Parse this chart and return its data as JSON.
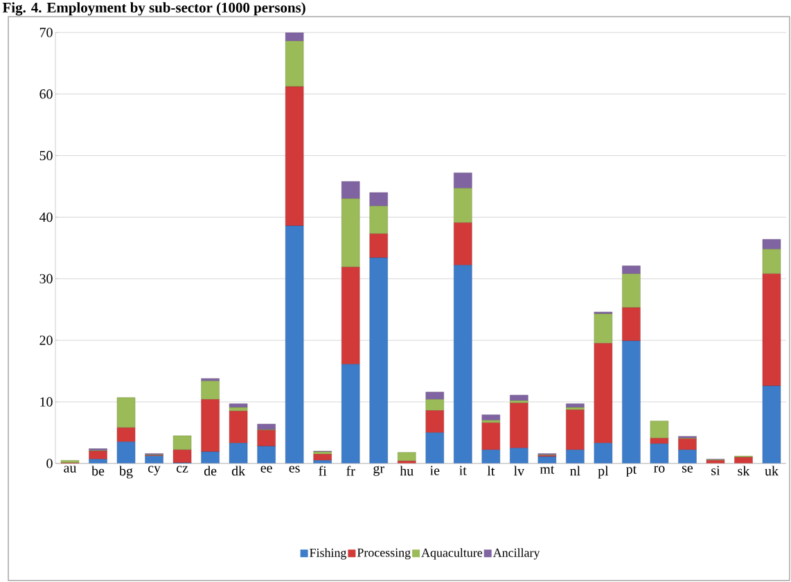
{
  "chart_data": {
    "type": "bar",
    "stacked": true,
    "title": "Fig. 4.  Employment by sub-sector (1000 persons)",
    "categories": [
      "au",
      "be",
      "bg",
      "cy",
      "cz",
      "de",
      "dk",
      "ee",
      "es",
      "fi",
      "fr",
      "gr",
      "hu",
      "ie",
      "it",
      "lt",
      "lv",
      "mt",
      "nl",
      "pl",
      "pt",
      "ro",
      "se",
      "si",
      "sk",
      "uk"
    ],
    "series": [
      {
        "name": "Fishing",
        "color": "#3d7cc9",
        "values": [
          0,
          0.7,
          3.5,
          1.2,
          0.1,
          1.9,
          3.3,
          2.8,
          38.6,
          0.5,
          16.1,
          33.4,
          0,
          5.0,
          32.2,
          2.2,
          2.5,
          1.1,
          2.2,
          3.3,
          19.9,
          3.2,
          2.2,
          null,
          0,
          12.6
        ]
      },
      {
        "name": "Processing",
        "color": "#d23a3a",
        "values": [
          0.1,
          1.3,
          2.3,
          0.1,
          2.1,
          8.5,
          5.2,
          2.6,
          22.6,
          1.0,
          15.8,
          3.9,
          0.4,
          3.6,
          6.9,
          4.4,
          7.3,
          0.2,
          6.5,
          16.2,
          5.4,
          0.9,
          1.8,
          0.5,
          1.0,
          18.2
        ]
      },
      {
        "name": "Aquaculture",
        "color": "#9bbb59",
        "values": [
          0.4,
          0.1,
          4.9,
          0.1,
          2.3,
          3.0,
          0.6,
          0.1,
          7.4,
          0.4,
          11.1,
          4.5,
          1.4,
          1.8,
          5.6,
          0.4,
          0.4,
          0.1,
          0.4,
          4.8,
          5.5,
          2.8,
          0.1,
          0.1,
          0.2,
          4.0
        ]
      },
      {
        "name": "Ancillary",
        "color": "#8064a2",
        "values": [
          0,
          0.3,
          0,
          0.2,
          0,
          0.4,
          0.6,
          0.9,
          1.4,
          0.1,
          2.8,
          2.2,
          0,
          1.2,
          2.5,
          0.9,
          0.9,
          0.2,
          0.6,
          0.3,
          1.3,
          0,
          0.3,
          0.1,
          0,
          1.6
        ]
      }
    ],
    "ylim": [
      0,
      70
    ],
    "yticks": [
      0,
      10,
      20,
      30,
      40,
      50,
      60,
      70
    ],
    "grid": "y",
    "legend": "bottom"
  }
}
